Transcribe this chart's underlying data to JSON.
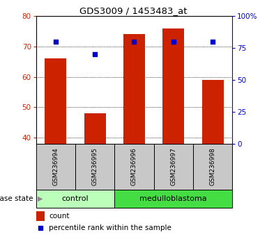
{
  "title": "GDS3009 / 1453483_at",
  "samples": [
    "GSM236994",
    "GSM236995",
    "GSM236996",
    "GSM236997",
    "GSM236998"
  ],
  "counts": [
    66,
    48,
    74,
    76,
    59
  ],
  "percentiles": [
    80,
    70,
    80,
    80,
    80
  ],
  "ylim_left": [
    38,
    80
  ],
  "ylim_right": [
    0,
    100
  ],
  "yticks_left": [
    40,
    50,
    60,
    70,
    80
  ],
  "yticks_right": [
    0,
    25,
    50,
    75,
    100
  ],
  "bar_color": "#cc2200",
  "dot_color": "#0000cc",
  "label_bg_color": "#c8c8c8",
  "groups": [
    {
      "label": "control",
      "indices": [
        0,
        1
      ],
      "color": "#bbffbb"
    },
    {
      "label": "medulloblastoma",
      "indices": [
        2,
        3,
        4
      ],
      "color": "#44dd44"
    }
  ],
  "disease_state_label": "disease state",
  "legend_count": "count",
  "legend_percentile": "percentile rank within the sample",
  "bar_width": 0.55
}
